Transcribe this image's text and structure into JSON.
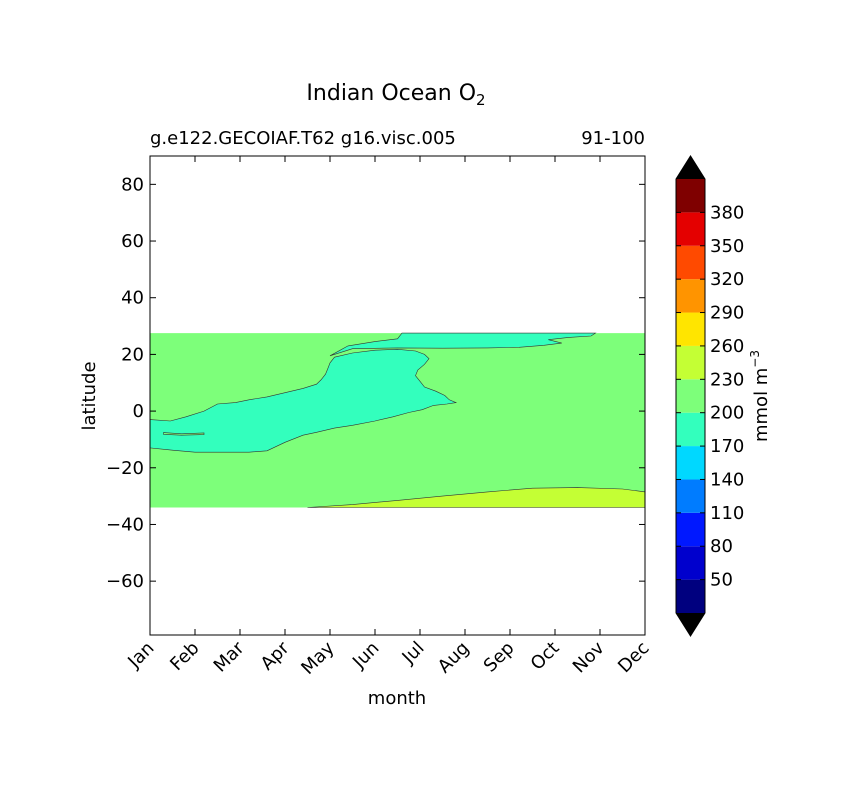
{
  "chart_data": {
    "type": "heatmap",
    "title_main": "Indian Ocean O",
    "title_sub": "2",
    "subtitle_left": "g.e122.GECOIAF.T62 g16.visc.005",
    "subtitle_right": "91-100",
    "xlabel": "month",
    "ylabel": "latitude",
    "x_categories": [
      "Jan",
      "Feb",
      "Mar",
      "Apr",
      "May",
      "Jun",
      "Jul",
      "Aug",
      "Sep",
      "Oct",
      "Nov",
      "Dec"
    ],
    "xlim": [
      0,
      11
    ],
    "ylim": [
      -79,
      90
    ],
    "y_ticks": [
      80,
      60,
      40,
      20,
      0,
      -20,
      -40,
      -60
    ],
    "data_lat_range": [
      -34,
      27.5
    ],
    "regions": [
      {
        "name": "background",
        "level": "200-230",
        "color": "#7dff7a",
        "outline": [
          [
            0,
            27.5
          ],
          [
            11,
            27.5
          ],
          [
            11,
            -34
          ],
          [
            0,
            -34
          ]
        ]
      },
      {
        "name": "low-band",
        "level": "170-200",
        "color": "#33ffbd",
        "outline": [
          [
            0,
            -3
          ],
          [
            0.45,
            -3.5
          ],
          [
            0.8,
            -2
          ],
          [
            1.2,
            0
          ],
          [
            1.5,
            2.5
          ],
          [
            1.9,
            3
          ],
          [
            2.2,
            4
          ],
          [
            2.6,
            5
          ],
          [
            3,
            6.5
          ],
          [
            3.4,
            8
          ],
          [
            3.7,
            9.5
          ],
          [
            3.8,
            11
          ],
          [
            3.9,
            13
          ],
          [
            3.95,
            15
          ],
          [
            4,
            17
          ],
          [
            4.1,
            19
          ],
          [
            4.5,
            20.5
          ],
          [
            5,
            21.5
          ],
          [
            5.5,
            21.8
          ],
          [
            5.9,
            21.2
          ],
          [
            6.1,
            20
          ],
          [
            6.2,
            18.5
          ],
          [
            6.1,
            16.5
          ],
          [
            5.95,
            14.5
          ],
          [
            5.9,
            12.5
          ],
          [
            6.0,
            10.5
          ],
          [
            6.1,
            8.5
          ],
          [
            6.35,
            7
          ],
          [
            6.55,
            5.5
          ],
          [
            6.65,
            4
          ],
          [
            6.8,
            3
          ],
          [
            6.6,
            2.5
          ],
          [
            6.3,
            2
          ],
          [
            6.05,
            0.5
          ],
          [
            5.75,
            -0.5
          ],
          [
            5.4,
            -2
          ],
          [
            5,
            -3.5
          ],
          [
            4.5,
            -5
          ],
          [
            4.1,
            -6
          ],
          [
            3.7,
            -7.5
          ],
          [
            3.4,
            -8.5
          ],
          [
            3,
            -11
          ],
          [
            2.6,
            -14
          ],
          [
            2.2,
            -14.5
          ],
          [
            1.6,
            -14.5
          ],
          [
            1,
            -14.5
          ],
          [
            0.5,
            -13.8
          ],
          [
            0,
            -13
          ]
        ]
      },
      {
        "name": "low-tongue",
        "level": "170-200",
        "color": "#33ffbd",
        "outline": [
          [
            4,
            19.5
          ],
          [
            4.4,
            23
          ],
          [
            5,
            24.5
          ],
          [
            5.5,
            25.5
          ],
          [
            5.6,
            27.5
          ],
          [
            9.9,
            27.5
          ],
          [
            9.8,
            26.5
          ],
          [
            9.3,
            26
          ],
          [
            8.85,
            25.2
          ],
          [
            9.15,
            24
          ],
          [
            8.75,
            23.2
          ],
          [
            8.2,
            22.5
          ],
          [
            7.5,
            22.3
          ],
          [
            6.5,
            22.2
          ],
          [
            5.5,
            22.3
          ],
          [
            4.5,
            22
          ]
        ]
      },
      {
        "name": "green-island",
        "level": "200-230",
        "color": "#7dff7a",
        "outline": [
          [
            0.3,
            -7.6
          ],
          [
            0.7,
            -8
          ],
          [
            1.2,
            -7.7
          ],
          [
            1.2,
            -8.3
          ],
          [
            0.7,
            -8.5
          ],
          [
            0.3,
            -8.2
          ]
        ]
      },
      {
        "name": "high-band",
        "level": "230-260",
        "color": "#c4ff34",
        "outline": [
          [
            3.5,
            -34
          ],
          [
            4.5,
            -33
          ],
          [
            5.5,
            -31.5
          ],
          [
            6.5,
            -30
          ],
          [
            7.5,
            -28.5
          ],
          [
            8.5,
            -27.2
          ],
          [
            9.5,
            -27
          ],
          [
            10.5,
            -27.5
          ],
          [
            11,
            -28.5
          ],
          [
            11,
            -34
          ]
        ]
      }
    ],
    "colorbar": {
      "label": "mmol m",
      "label_sup": "−3",
      "ticks": [
        "50",
        "80",
        "110",
        "140",
        "170",
        "200",
        "230",
        "260",
        "290",
        "320",
        "350",
        "380"
      ],
      "colors": [
        "#00007f",
        "#0000cd",
        "#0018ff",
        "#007cff",
        "#00d8ff",
        "#33ffbd",
        "#7dff7a",
        "#c4ff34",
        "#ffe500",
        "#ff9400",
        "#ff4a00",
        "#e40000",
        "#7f0000"
      ],
      "extend_colors": {
        "under": "#000000",
        "over": "#000000"
      }
    }
  }
}
